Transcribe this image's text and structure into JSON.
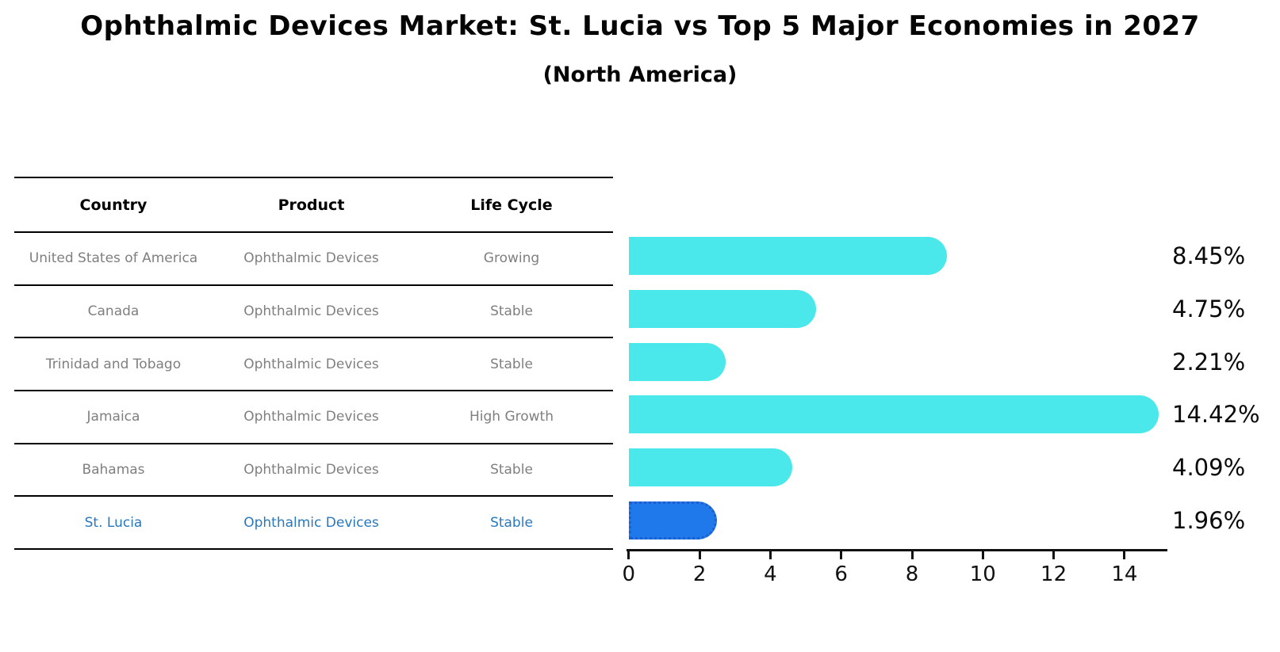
{
  "title": "Ophthalmic Devices Market: St. Lucia vs Top 5 Major Economies in 2027",
  "subtitle": "(North America)",
  "table": {
    "columns": [
      "Country",
      "Product",
      "Life Cycle"
    ],
    "rows": [
      {
        "country": "United States of America",
        "product": "Ophthalmic Devices",
        "life_cycle": "Growing",
        "pct": "8.45%",
        "highlight": false
      },
      {
        "country": "Canada",
        "product": "Ophthalmic Devices",
        "life_cycle": "Stable",
        "pct": "4.75%",
        "highlight": false
      },
      {
        "country": "Trinidad and Tobago",
        "product": "Ophthalmic Devices",
        "life_cycle": "Stable",
        "pct": "2.21%",
        "highlight": false
      },
      {
        "country": "Jamaica",
        "product": "Ophthalmic Devices",
        "life_cycle": "High Growth",
        "pct": "14.42%",
        "highlight": false
      },
      {
        "country": "Bahamas",
        "product": "Ophthalmic Devices",
        "life_cycle": "Stable",
        "pct": "4.09%",
        "highlight": false
      },
      {
        "country": "St. Lucia",
        "product": "Ophthalmic Devices",
        "life_cycle": "Stable",
        "pct": "1.96%",
        "highlight": true
      }
    ]
  },
  "chart_data": {
    "type": "bar",
    "orientation": "horizontal",
    "title": "Ophthalmic Devices Market: St. Lucia vs Top 5 Major Economies in 2027 (North America)",
    "categories": [
      "United States of America",
      "Canada",
      "Trinidad and Tobago",
      "Jamaica",
      "Bahamas",
      "St. Lucia"
    ],
    "values": [
      8.45,
      4.75,
      2.21,
      14.42,
      4.09,
      1.96
    ],
    "data_labels": [
      "8.45%",
      "4.75%",
      "2.21%",
      "14.42%",
      "4.09%",
      "1.96%"
    ],
    "xlabel": "",
    "ylabel": "",
    "xlim": [
      0,
      15.2
    ],
    "xticks": [
      0,
      2,
      4,
      6,
      8,
      10,
      12,
      14
    ],
    "grid": false,
    "legend": null,
    "bar_color": "#4AE8EA",
    "highlight_index": 5,
    "highlight_color": "#2079EA",
    "highlight_border_color": "#1B5FD0",
    "highlight_border_style": "dotted",
    "bar_cap": "rounded-right"
  },
  "colors": {
    "bar_cyan": "#4AE8EA",
    "bar_blue": "#2079EA",
    "blue_dotted_border": "#1B5FD0",
    "highlight_text": "#2878be",
    "table_text": "#7f7f7f",
    "heading_text": "#000000",
    "axis": "#111111",
    "background": "#ffffff"
  }
}
